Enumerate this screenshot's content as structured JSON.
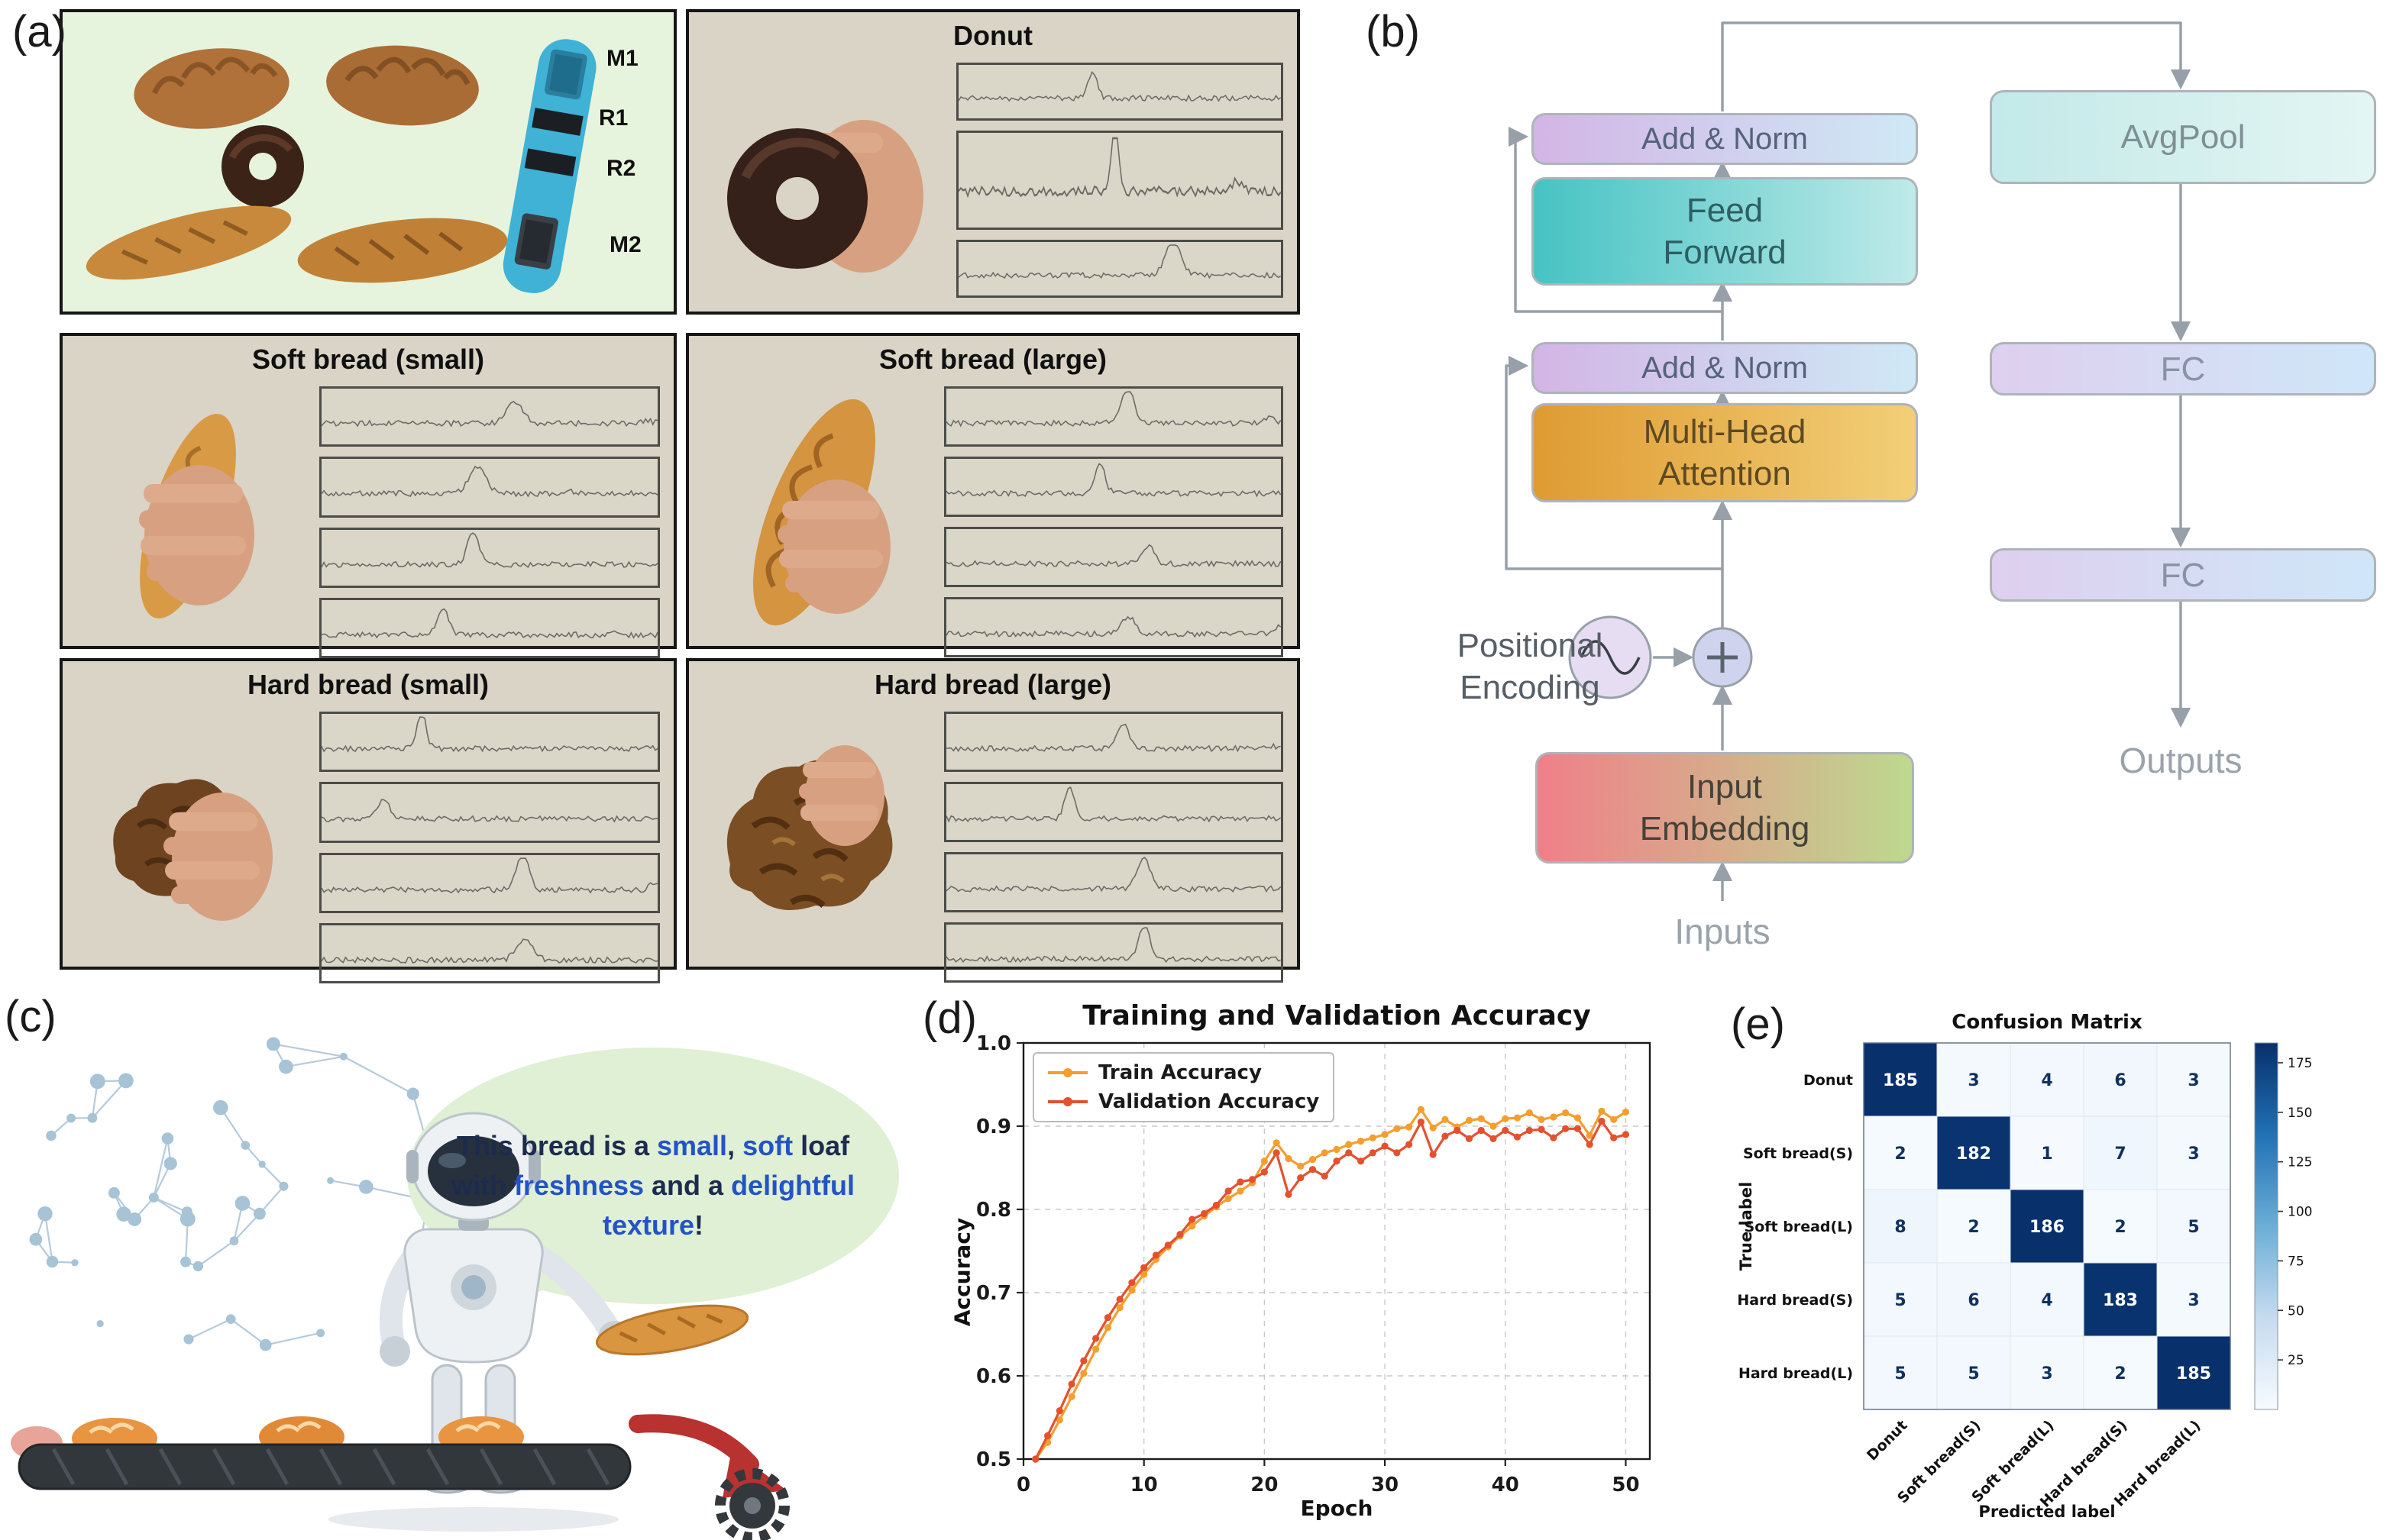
{
  "figure": {
    "panel_labels": {
      "a": "(a)",
      "b": "(b)",
      "c": "(c)",
      "d": "(d)",
      "e": "(e)"
    }
  },
  "panel_a": {
    "sensor_strip_labels": [
      "M1",
      "R1",
      "R2",
      "M2"
    ],
    "subpanels": [
      {
        "title": "Donut",
        "strips": 3
      },
      {
        "title": "Soft bread (small)",
        "strips": 4
      },
      {
        "title": "Soft bread (large)",
        "strips": 4
      },
      {
        "title": "Hard bread (small)",
        "strips": 4
      },
      {
        "title": "Hard bread (large)",
        "strips": 4
      }
    ]
  },
  "panel_b": {
    "add_norm_top": "Add & Norm",
    "feed_forward": "Feed\nForward",
    "add_norm_bottom": "Add & Norm",
    "multi_head_attention": "Multi-Head\nAttention",
    "positional_encoding": "Positional\nEncoding",
    "input_embedding": "Input\nEmbedding",
    "inputs": "Inputs",
    "avgpool": "AvgPool",
    "fc_top": "FC",
    "fc_bottom": "FC",
    "outputs": "Outputs",
    "colors": {
      "add_norm_left": "#d3b5e5",
      "add_norm_right": "#cfe9f6",
      "feed_forward_left": "#46c3c3",
      "feed_forward_right": "#bfeae9",
      "attention_left": "#df9b32",
      "attention_right": "#f2cf78",
      "embedding_left": "#f07f88",
      "embedding_right": "#bdd98f",
      "avgpool_left": "#c3e9e9",
      "avgpool_right": "#e3f6f3",
      "fc_left": "#decfee",
      "fc_right": "#cfe7f8"
    }
  },
  "panel_c": {
    "text_color": "#1c2b4e",
    "highlight_color": "#2353c7",
    "speech_segments": [
      {
        "text": "This bread is a ",
        "highlight": false
      },
      {
        "text": "small",
        "highlight": true
      },
      {
        "text": ", ",
        "highlight": false
      },
      {
        "text": "soft",
        "highlight": true
      },
      {
        "text": " loaf with ",
        "highlight": false
      },
      {
        "text": "freshness",
        "highlight": true
      },
      {
        "text": " and a ",
        "highlight": false
      },
      {
        "text": "delightful texture",
        "highlight": true
      },
      {
        "text": "!",
        "highlight": false
      }
    ]
  },
  "chart_data": [
    {
      "type": "line",
      "title": "Training and Validation Accuracy",
      "xlabel": "Epoch",
      "ylabel": "Accuracy",
      "xlim": [
        0,
        52
      ],
      "ylim": [
        0.5,
        1.0
      ],
      "xticks": [
        0,
        10,
        20,
        30,
        40,
        50
      ],
      "yticks": [
        0.5,
        0.6,
        0.7,
        0.8,
        0.9,
        1.0
      ],
      "grid": true,
      "legend_position": "upper left",
      "x": [
        1,
        2,
        3,
        4,
        5,
        6,
        7,
        8,
        9,
        10,
        11,
        12,
        13,
        14,
        15,
        16,
        17,
        18,
        19,
        20,
        21,
        22,
        23,
        24,
        25,
        26,
        27,
        28,
        29,
        30,
        31,
        32,
        33,
        34,
        35,
        36,
        37,
        38,
        39,
        40,
        41,
        42,
        43,
        44,
        45,
        46,
        47,
        48,
        49,
        50
      ],
      "series": [
        {
          "name": "Train Accuracy",
          "color": "#f59e2e",
          "values": [
            0.5,
            0.52,
            0.547,
            0.575,
            0.603,
            0.632,
            0.658,
            0.682,
            0.703,
            0.722,
            0.74,
            0.755,
            0.768,
            0.78,
            0.792,
            0.803,
            0.813,
            0.822,
            0.832,
            0.858,
            0.88,
            0.861,
            0.852,
            0.86,
            0.868,
            0.872,
            0.878,
            0.882,
            0.886,
            0.89,
            0.897,
            0.899,
            0.92,
            0.898,
            0.908,
            0.899,
            0.907,
            0.909,
            0.9,
            0.909,
            0.91,
            0.916,
            0.908,
            0.911,
            0.916,
            0.91,
            0.889,
            0.918,
            0.908,
            0.917
          ]
        },
        {
          "name": "Validation Accuracy",
          "color": "#e4512e",
          "values": [
            0.5,
            0.528,
            0.558,
            0.59,
            0.618,
            0.645,
            0.67,
            0.692,
            0.712,
            0.73,
            0.745,
            0.757,
            0.77,
            0.788,
            0.795,
            0.805,
            0.822,
            0.833,
            0.836,
            0.845,
            0.868,
            0.818,
            0.838,
            0.848,
            0.84,
            0.858,
            0.868,
            0.858,
            0.868,
            0.876,
            0.868,
            0.878,
            0.905,
            0.866,
            0.888,
            0.895,
            0.885,
            0.895,
            0.885,
            0.895,
            0.887,
            0.895,
            0.896,
            0.886,
            0.897,
            0.897,
            0.878,
            0.906,
            0.886,
            0.89
          ]
        }
      ]
    },
    {
      "type": "heatmap",
      "title": "Confusion Matrix",
      "xlabel": "Predicted label",
      "ylabel": "True label",
      "categories": [
        "Donut",
        "Soft bread(S)",
        "Soft bread(L)",
        "Hard bread(S)",
        "Hard bread(L)"
      ],
      "matrix": [
        [
          185,
          3,
          4,
          6,
          3
        ],
        [
          2,
          182,
          1,
          7,
          3
        ],
        [
          8,
          2,
          186,
          2,
          5
        ],
        [
          5,
          6,
          4,
          183,
          3
        ],
        [
          5,
          5,
          3,
          2,
          185
        ]
      ],
      "colormap": "Blues",
      "vmin": 0,
      "vmax": 185,
      "colorbar_ticks": [
        25,
        50,
        75,
        100,
        125,
        150,
        175
      ]
    }
  ]
}
